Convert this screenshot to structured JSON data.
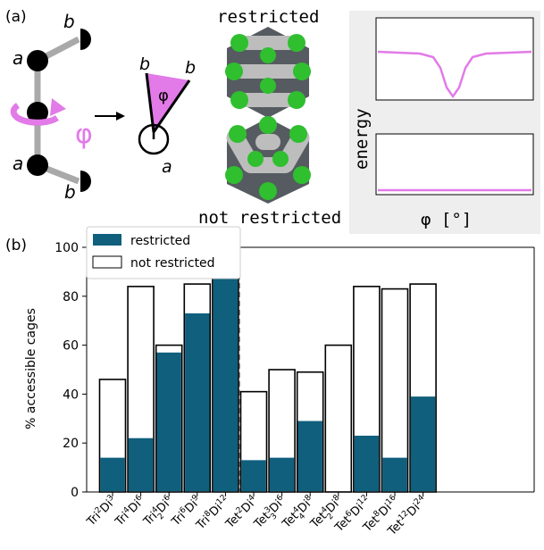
{
  "panel_a": {
    "label": "(a)",
    "schematic": {
      "atom_a": "a",
      "atom_b": "b",
      "angle": "φ"
    },
    "cage_top_label": "restricted",
    "cage_bottom_label": "not restricted",
    "energy_plot": {
      "ylabel": "energy",
      "xlabel": "φ [°]",
      "line_color": "#e27ae8"
    }
  },
  "chart_data": {
    "type": "bar",
    "panel_label": "(b)",
    "ylabel": "% accessible cages",
    "ylim": [
      0,
      100
    ],
    "yticks": [
      0,
      20,
      40,
      60,
      80,
      100
    ],
    "grid": false,
    "legend_position": "top-left",
    "categories": [
      {
        "base": "Tri",
        "sup1": "2",
        "sub1": "",
        "mid": "Di",
        "sup2": "3"
      },
      {
        "base": "Tri",
        "sup1": "4",
        "sub1": "",
        "mid": "Di",
        "sup2": "6"
      },
      {
        "base": "Tri",
        "sup1": "4",
        "sub1": "2",
        "mid": "Di",
        "sup2": "6"
      },
      {
        "base": "Tri",
        "sup1": "6",
        "sub1": "",
        "mid": "Di",
        "sup2": "9"
      },
      {
        "base": "Tri",
        "sup1": "8",
        "sub1": "",
        "mid": "Di",
        "sup2": "12"
      },
      {
        "base": "Tet",
        "sup1": "2",
        "sub1": "",
        "mid": "Di",
        "sup2": "4"
      },
      {
        "base": "Tet",
        "sup1": "3",
        "sub1": "3",
        "mid": "Di",
        "sup2": "6"
      },
      {
        "base": "Tet",
        "sup1": "4",
        "sub1": "4",
        "mid": "Di",
        "sup2": "8"
      },
      {
        "base": "Tet",
        "sup1": "4",
        "sub1": "2",
        "mid": "Di",
        "sup2": "8"
      },
      {
        "base": "Tet",
        "sup1": "6",
        "sub1": "",
        "mid": "Di",
        "sup2": "12"
      },
      {
        "base": "Tet",
        "sup1": "8",
        "sub1": "",
        "mid": "Di",
        "sup2": "16"
      },
      {
        "base": "Tet",
        "sup1": "12",
        "sub1": "",
        "mid": "Di",
        "sup2": "24"
      }
    ],
    "series": [
      {
        "name": "restricted",
        "color": "#0f5f7d",
        "values": [
          14,
          22,
          57,
          73,
          88,
          13,
          14,
          29,
          0,
          23,
          14,
          39
        ]
      },
      {
        "name": "not restricted",
        "color": "#ffffff",
        "values": [
          46,
          84,
          60,
          85,
          89,
          41,
          50,
          49,
          60,
          84,
          83,
          85
        ]
      }
    ],
    "divider_after_index": 4
  }
}
